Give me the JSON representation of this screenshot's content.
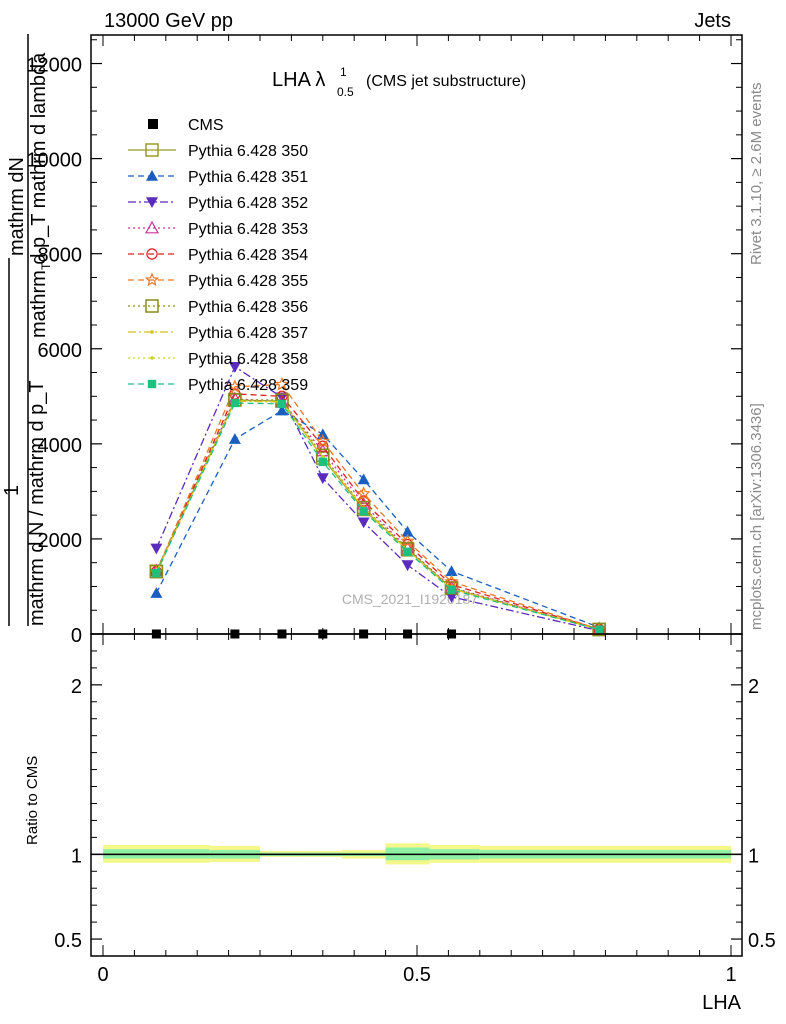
{
  "header": {
    "left": "13000 GeV pp",
    "right": "Jets"
  },
  "side": {
    "rivet": "Rivet 3.1.10, ≥ 2.6M events",
    "mcplots": "mcplots.cern.ch [arXiv:1306.3436]"
  },
  "watermark": "CMS_2021_I1920187",
  "chart_data": [
    {
      "type": "line",
      "title_main": "LHA λ",
      "title_sup": "1",
      "title_sub": "0.5",
      "title_note": "(CMS jet substructure)",
      "ylabel_top": "mathrm dN",
      "ylabel_top2": "mathrm d p_T mathrm d lambda",
      "ylabel_one": "1",
      "ylabel_bottom": "mathrm d N / mathrm d p_T",
      "ylabel_sub": "T",
      "ylim": [
        0,
        12600
      ],
      "yticks": [
        0,
        2000,
        4000,
        6000,
        8000,
        10000,
        12000
      ],
      "xlim": [
        0,
        1
      ],
      "x": [
        0.085,
        0.21,
        0.285,
        0.35,
        0.415,
        0.485,
        0.555,
        0.79
      ],
      "reference": {
        "name": "CMS",
        "x": [
          0.085,
          0.21,
          0.285,
          0.35,
          0.415,
          0.485,
          0.555
        ],
        "values": [
          0,
          0,
          0,
          0,
          0,
          0,
          0
        ]
      },
      "series": [
        {
          "name": "Pythia 6.428 350",
          "color": "#9a9a27",
          "marker": "square-open",
          "dash": "",
          "values": [
            1310,
            4920,
            4900,
            3700,
            2620,
            1770,
            960,
            95
          ]
        },
        {
          "name": "Pythia 6.428 351",
          "color": "#1a5fbf",
          "marker": "triangle",
          "dash": "6,4",
          "values": [
            860,
            4100,
            4700,
            4200,
            3250,
            2150,
            1320,
            140
          ]
        },
        {
          "name": "Pythia 6.428 352",
          "color": "#5b2bbd",
          "marker": "triangle-down",
          "dash": "8,3,2,3",
          "values": [
            1800,
            5620,
            4980,
            3280,
            2350,
            1450,
            780,
            70
          ]
        },
        {
          "name": "Pythia 6.428 353",
          "color": "#cc3399",
          "marker": "triangle-open",
          "dash": "2,3",
          "values": [
            1330,
            4950,
            4880,
            3850,
            2730,
            1800,
            980,
            95
          ]
        },
        {
          "name": "Pythia 6.428 354",
          "color": "#dd2222",
          "marker": "circle-open",
          "dash": "6,4",
          "values": [
            1310,
            5050,
            5000,
            3950,
            2800,
            1880,
            1040,
            98
          ]
        },
        {
          "name": "Pythia 6.428 355",
          "color": "#ee7722",
          "marker": "star-open",
          "dash": "6,4",
          "values": [
            1300,
            5200,
            5250,
            4050,
            2950,
            1950,
            1100,
            100
          ]
        },
        {
          "name": "Pythia 6.428 356",
          "color": "#8a8a1c",
          "marker": "square-open",
          "dash": "2,3",
          "values": [
            1320,
            4930,
            4920,
            3760,
            2660,
            1790,
            970,
            95
          ]
        },
        {
          "name": "Pythia 6.428 357",
          "color": "#d4c21c",
          "marker": "dot",
          "dash": "8,3,2,3",
          "values": [
            1290,
            4900,
            4880,
            3720,
            2640,
            1760,
            950,
            92
          ]
        },
        {
          "name": "Pythia 6.428 358",
          "color": "#c8d820",
          "marker": "dot",
          "dash": "2,3",
          "values": [
            1300,
            4910,
            4890,
            3730,
            2650,
            1770,
            955,
            93
          ]
        },
        {
          "name": "Pythia 6.428 359",
          "color": "#1fbf80",
          "marker": "square",
          "dash": "6,4",
          "values": [
            1280,
            4860,
            4840,
            3620,
            2580,
            1730,
            930,
            90
          ]
        }
      ]
    },
    {
      "type": "line",
      "ylabel": "Ratio to CMS",
      "xlabel": "LHA",
      "ylim": [
        0.4,
        2.3
      ],
      "yticks": [
        0.5,
        1,
        2
      ],
      "yticklabels": [
        "0.5",
        "1",
        "2"
      ],
      "xticks": [
        0,
        0.5,
        1
      ],
      "xticklabels": [
        "0",
        "0.5",
        "1"
      ],
      "bands": [
        {
          "x0": 0,
          "x1": 0.17,
          "outer": [
            0.95,
            1.055
          ],
          "inner": [
            0.975,
            1.03
          ]
        },
        {
          "x0": 0.17,
          "x1": 0.25,
          "outer": [
            0.955,
            1.05
          ],
          "inner": [
            0.975,
            1.025
          ]
        },
        {
          "x0": 0.25,
          "x1": 0.32,
          "outer": [
            0.985,
            1.02
          ],
          "inner": [
            0.99,
            1.01
          ]
        },
        {
          "x0": 0.32,
          "x1": 0.38,
          "outer": [
            0.985,
            1.02
          ],
          "inner": [
            0.99,
            1.01
          ]
        },
        {
          "x0": 0.38,
          "x1": 0.45,
          "outer": [
            0.975,
            1.025
          ],
          "inner": [
            0.99,
            1.01
          ]
        },
        {
          "x0": 0.45,
          "x1": 0.52,
          "outer": [
            0.94,
            1.065
          ],
          "inner": [
            0.965,
            1.04
          ]
        },
        {
          "x0": 0.52,
          "x1": 0.6,
          "outer": [
            0.95,
            1.055
          ],
          "inner": [
            0.97,
            1.03
          ]
        },
        {
          "x0": 0.6,
          "x1": 1.0,
          "outer": [
            0.95,
            1.05
          ],
          "inner": [
            0.975,
            1.025
          ]
        }
      ],
      "reference_value": 1
    }
  ]
}
